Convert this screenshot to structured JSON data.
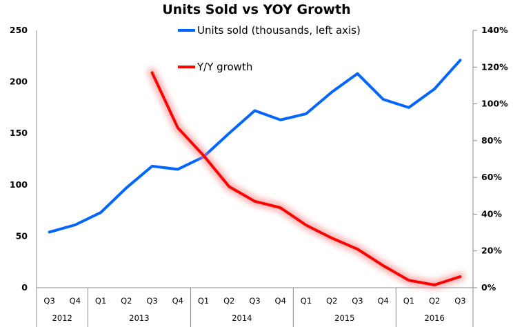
{
  "chart_data": {
    "type": "line",
    "title": "Units Sold vs YOY Growth",
    "categories": [
      "Q3",
      "Q4",
      "Q1",
      "Q2",
      "Q3",
      "Q4",
      "Q1",
      "Q2",
      "Q3",
      "Q4",
      "Q1",
      "Q2",
      "Q3",
      "Q4",
      "Q1",
      "Q2",
      "Q3"
    ],
    "category_groups": [
      {
        "label": "2012",
        "count": 2
      },
      {
        "label": "2013",
        "count": 4
      },
      {
        "label": "2014",
        "count": 4
      },
      {
        "label": "2015",
        "count": 4
      },
      {
        "label": "2016",
        "count": 3
      }
    ],
    "series": [
      {
        "name": "Units sold (thousands, left axis)",
        "axis": "left",
        "color": "#0066FF",
        "values": [
          54,
          61,
          73,
          97,
          118,
          115,
          127,
          150,
          172,
          163,
          169,
          190,
          208,
          183,
          175,
          193,
          221
        ]
      },
      {
        "name": "Y/Y growth",
        "axis": "right",
        "color": "#FF0000",
        "glow": true,
        "values": [
          null,
          null,
          null,
          null,
          117,
          87,
          72,
          55,
          47,
          43.5,
          34,
          27,
          21,
          12,
          4,
          1.5,
          6
        ]
      }
    ],
    "left_axis": {
      "ylim": [
        0,
        250
      ],
      "ticks": [
        0,
        50,
        100,
        150,
        200,
        250
      ],
      "tick_labels": [
        "0",
        "50",
        "100",
        "150",
        "200",
        "250"
      ]
    },
    "right_axis": {
      "ylim": [
        0,
        140
      ],
      "ticks": [
        0,
        20,
        40,
        60,
        80,
        100,
        120,
        140
      ],
      "tick_labels": [
        "0%",
        "20%",
        "40%",
        "60%",
        "80%",
        "100%",
        "120%",
        "140%"
      ],
      "unit": "%"
    },
    "xlabel": "",
    "ylabel": "",
    "grid": false,
    "legend_position": "top-center"
  }
}
